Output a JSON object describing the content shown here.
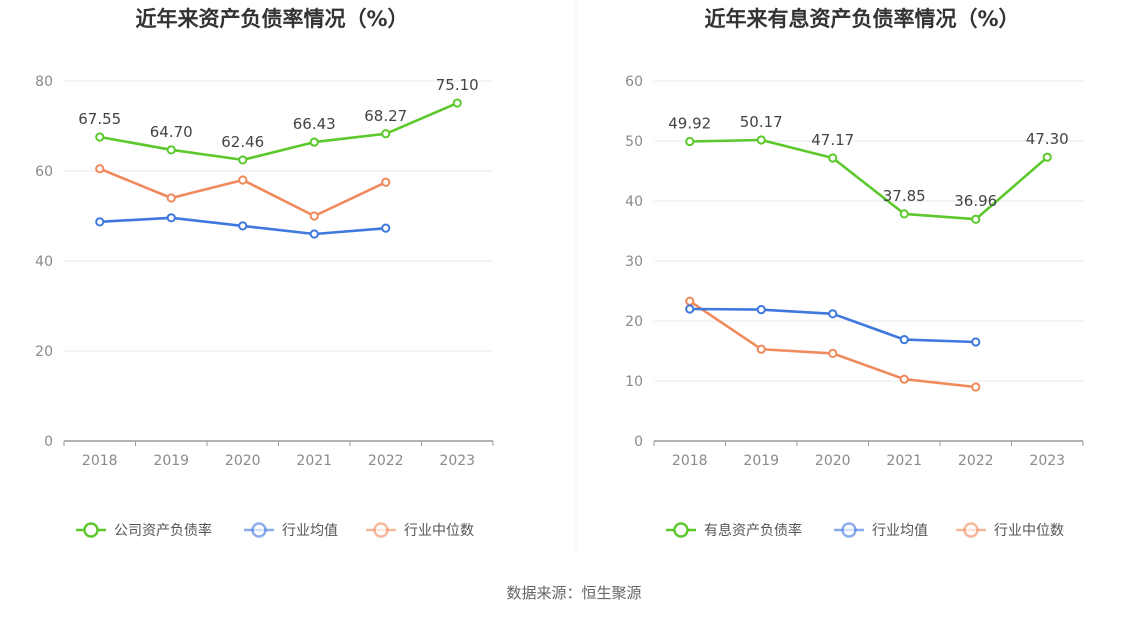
{
  "source": "数据来源：恒生聚源",
  "colors": {
    "company": "#5cc82c",
    "avg": "#3f78de",
    "median": "#f08a5d",
    "grid": "#e6e8ef",
    "axis": "#999999"
  },
  "chart_data": [
    {
      "type": "line",
      "title": "近年来资产负债率情况（%）",
      "categories": [
        "2018",
        "2019",
        "2020",
        "2021",
        "2022",
        "2023"
      ],
      "ylim": [
        0,
        80
      ],
      "yticks": [
        0,
        20,
        40,
        60,
        80
      ],
      "grid": true,
      "legend_position": "bottom",
      "series": [
        {
          "name": "公司资产负债率",
          "color": "#5cc82c",
          "values": [
            67.55,
            64.7,
            62.46,
            66.43,
            68.27,
            75.1
          ],
          "labels": [
            "67.55",
            "64.70",
            "62.46",
            "66.43",
            "68.27",
            "75.10"
          ]
        },
        {
          "name": "行业均值",
          "color": "#3f78de",
          "values": [
            48.7,
            49.6,
            47.8,
            46.0,
            47.3,
            null
          ]
        },
        {
          "name": "行业中位数",
          "color": "#f08a5d",
          "values": [
            60.5,
            54.0,
            58.0,
            50.0,
            57.5,
            null
          ]
        }
      ]
    },
    {
      "type": "line",
      "title": "近年来有息资产负债率情况（%）",
      "categories": [
        "2018",
        "2019",
        "2020",
        "2021",
        "2022",
        "2023"
      ],
      "ylim": [
        0,
        60
      ],
      "yticks": [
        0,
        10,
        20,
        30,
        40,
        50,
        60
      ],
      "grid": true,
      "legend_position": "bottom",
      "series": [
        {
          "name": "有息资产负债率",
          "color": "#5cc82c",
          "values": [
            49.92,
            50.17,
            47.17,
            37.85,
            36.96,
            47.3
          ],
          "labels": [
            "49.92",
            "50.17",
            "47.17",
            "37.85",
            "36.96",
            "47.30"
          ]
        },
        {
          "name": "行业均值",
          "color": "#3f78de",
          "values": [
            22.0,
            21.9,
            21.2,
            16.9,
            16.5,
            null
          ]
        },
        {
          "name": "行业中位数",
          "color": "#f08a5d",
          "values": [
            23.3,
            15.3,
            14.6,
            10.3,
            9.0,
            null
          ]
        }
      ]
    }
  ]
}
